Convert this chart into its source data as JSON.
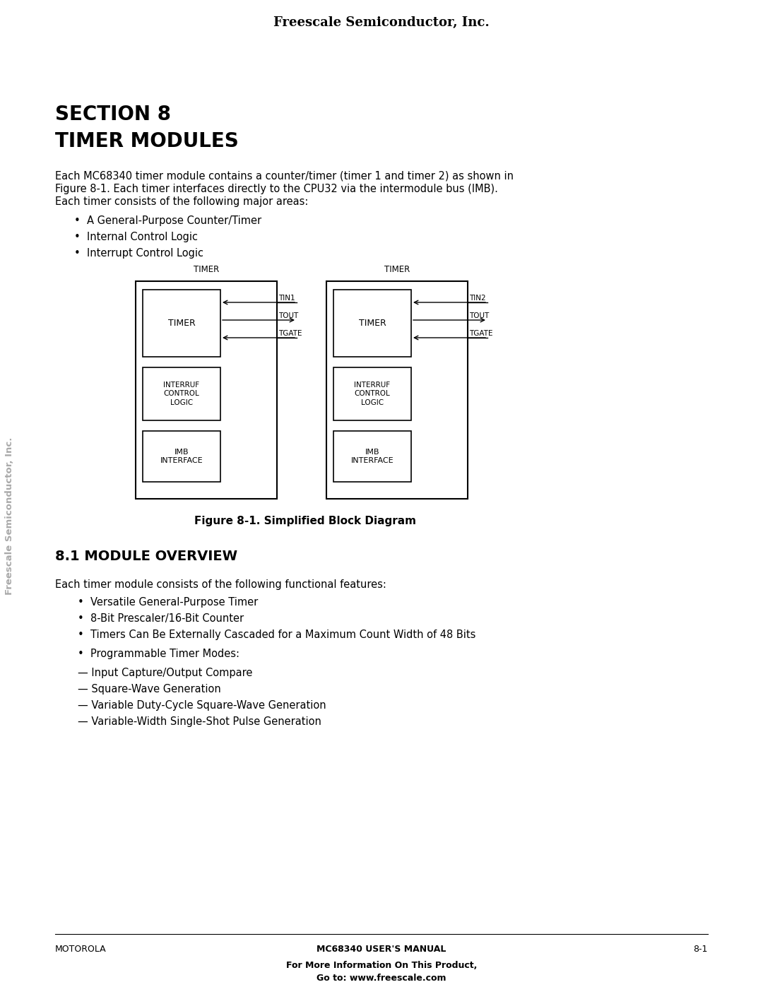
{
  "header": "Freescale Semiconductor, Inc.",
  "section_title_line1": "SECTION 8",
  "section_title_line2": "TIMER MODULES",
  "body_text1_line1": "Each MC68340 timer module contains a counter/timer (timer 1 and timer 2) as shown in",
  "body_text1_line2": "Figure 8-1. Each timer interfaces directly to the CPU32 via the intermodule bus (IMB).",
  "body_text1_line3": "Each timer consists of the following major areas:",
  "bullets1": [
    "A General-Purpose Counter/Timer",
    "Internal Control Logic",
    "Interrupt Control Logic"
  ],
  "figure_caption": "Figure 8-1. Simplified Block Diagram",
  "timer_module_label": "TIMER",
  "timer_box_label": "TIMER",
  "interrupt_box_label": "INTERRUF\nCONTROL\nLOGIC",
  "imb_box_label": "IMB\nINTERFACE",
  "tin1_label": "TIN1",
  "tout1_label": "TOUT",
  "tgate1_label": "TGATE",
  "tin2_label": "TIN2",
  "tout2_label": "TOUT",
  "tgate2_label": "TGATE",
  "section2_title": "8.1 MODULE OVERVIEW",
  "body_text2": "Each timer module consists of the following functional features:",
  "bullets2": [
    "Versatile General-Purpose Timer",
    "8-Bit Prescaler/16-Bit Counter",
    "Timers Can Be Externally Cascaded for a Maximum Count Width of 48 Bits",
    "Programmable Timer Modes:"
  ],
  "sub_bullets2": [
    "Input Capture/Output Compare",
    "Square-Wave Generation",
    "Variable Duty-Cycle Square-Wave Generation",
    "Variable-Width Single-Shot Pulse Generation"
  ],
  "footer_left": "MOTOROLA",
  "footer_center": "MC68340 USER'S MANUAL",
  "footer_right": "8-1",
  "footer_bottom_line1": "For More Information On This Product,",
  "footer_bottom_line2": "Go to: www.freescale.com",
  "side_text": "Freescale Semiconductor, Inc.",
  "bg_color": "#ffffff",
  "text_color": "#000000",
  "side_text_color": "#aaaaaa"
}
